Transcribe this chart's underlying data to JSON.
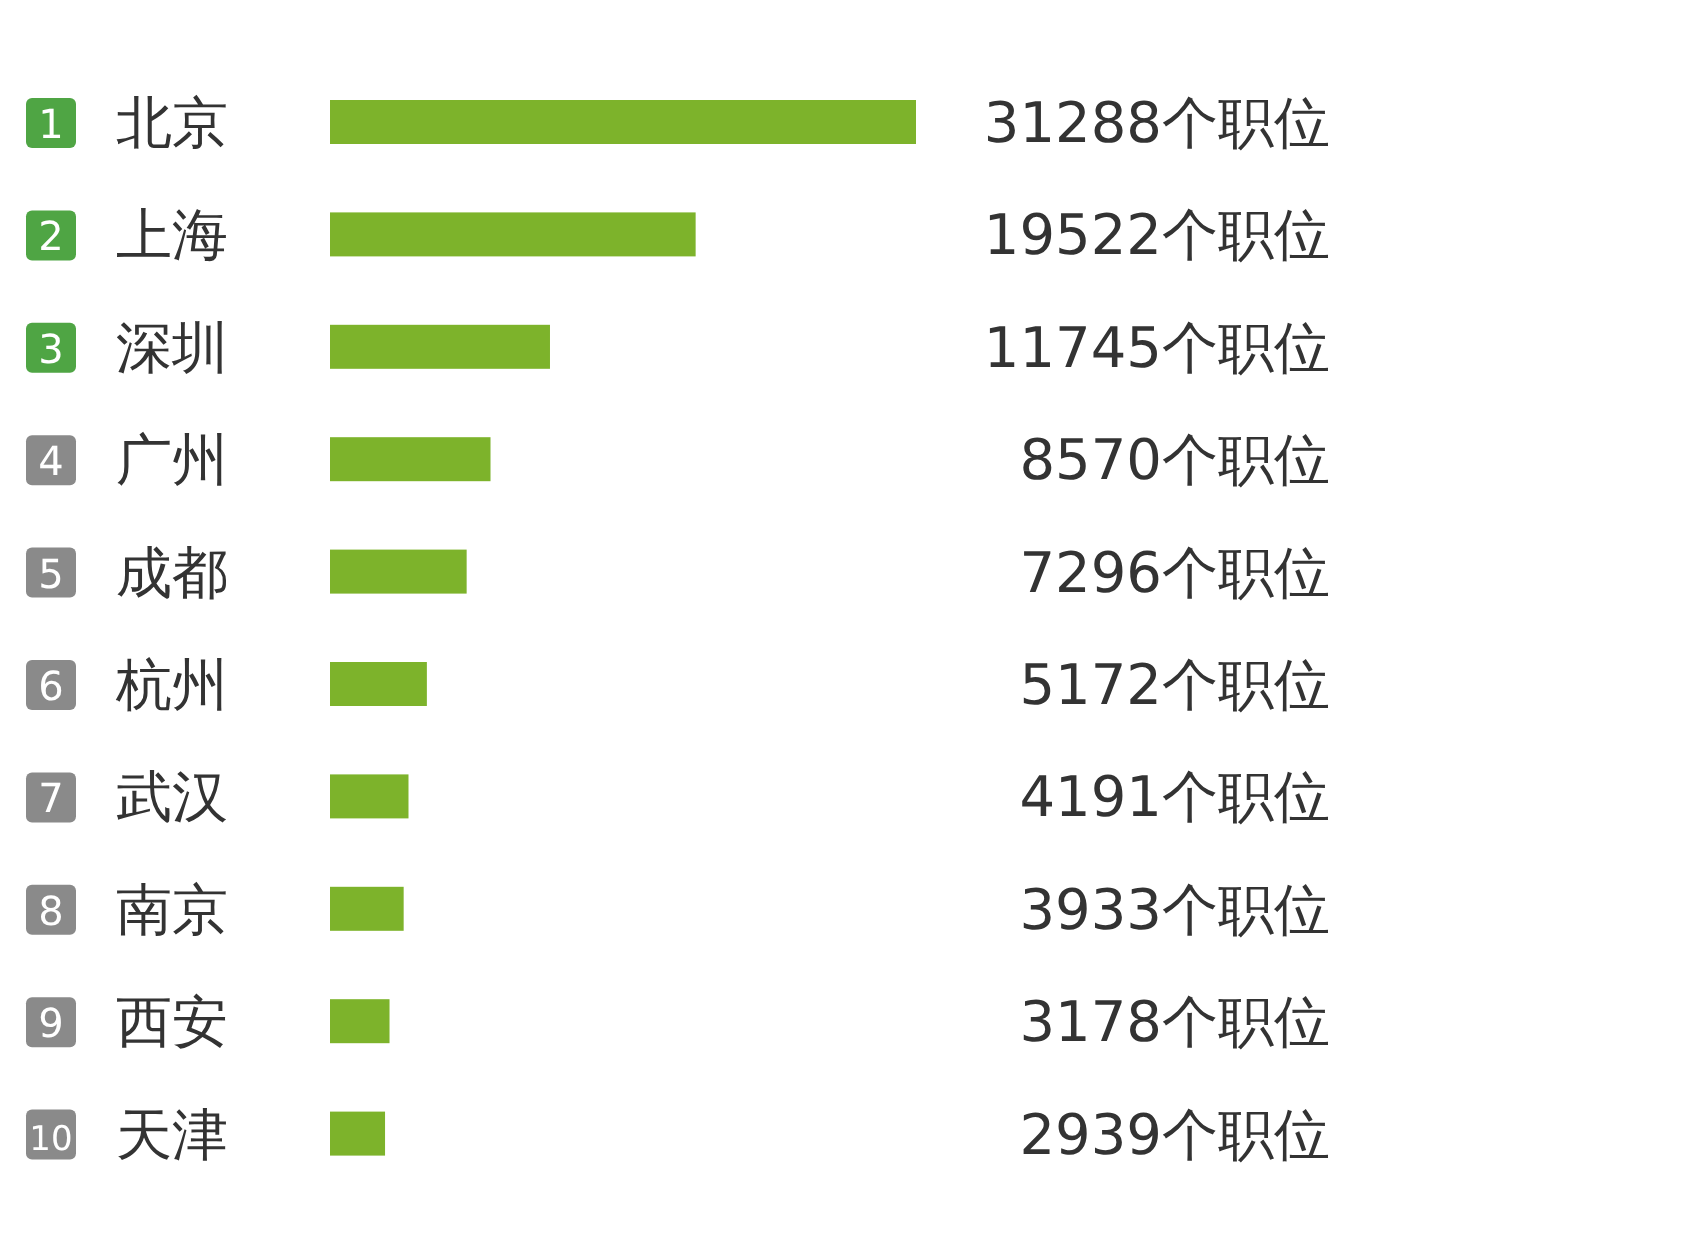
{
  "chart_data": {
    "type": "bar",
    "orientation": "horizontal",
    "categories": [
      "北京",
      "上海",
      "深圳",
      "广州",
      "成都",
      "杭州",
      "武汉",
      "南京",
      "西安",
      "天津"
    ],
    "values": [
      31288,
      19522,
      11745,
      8570,
      7296,
      5172,
      4191,
      3933,
      3178,
      2939
    ],
    "value_labels": [
      "31288个职位",
      "19522个职位",
      "11745个职位",
      "8570个职位",
      "7296个职位",
      "5172个职位",
      "4191个职位",
      "3933个职位",
      "3178个职位",
      "2939个职位"
    ],
    "color": "#7db32b",
    "annotations": [
      "1",
      "2",
      "3",
      "4",
      "5",
      "6",
      "7",
      "8",
      "9",
      "10"
    ]
  }
}
